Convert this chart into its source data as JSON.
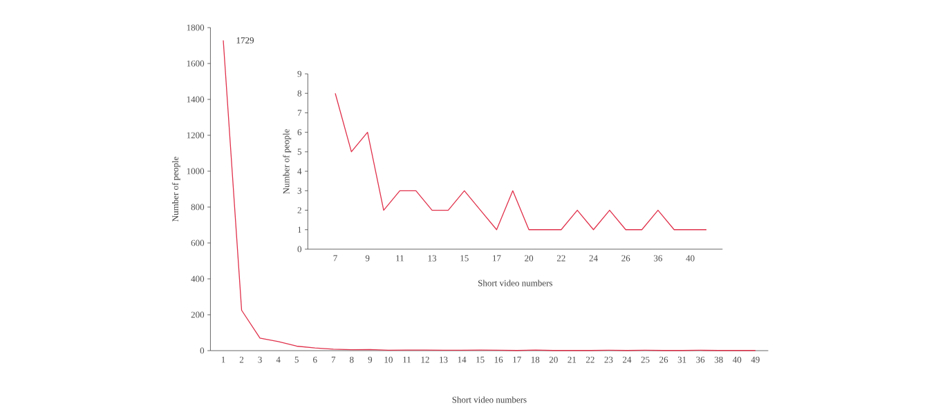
{
  "chart_data": [
    {
      "type": "line",
      "xlabel": "Short video numbers",
      "ylabel": "Number of people",
      "categories": [
        "1",
        "2",
        "3",
        "4",
        "5",
        "6",
        "7",
        "8",
        "9",
        "10",
        "11",
        "12",
        "13",
        "14",
        "15",
        "16",
        "17",
        "18",
        "20",
        "21",
        "22",
        "23",
        "24",
        "25",
        "26",
        "31",
        "36",
        "38",
        "40",
        "49"
      ],
      "series": [
        {
          "color": "#e0304a",
          "values": [
            1729,
            225,
            70,
            50,
            25,
            15,
            8,
            5,
            6,
            2,
            3,
            3,
            2,
            2,
            3,
            2,
            1,
            3,
            1,
            1,
            1,
            2,
            1,
            2,
            1,
            1,
            2,
            1,
            1,
            1
          ]
        }
      ],
      "ylim": [
        0,
        1800
      ],
      "yticks": [
        0,
        200,
        400,
        600,
        800,
        1000,
        1200,
        1400,
        1600,
        1800
      ],
      "annotations": [
        {
          "text": "1729",
          "x": "1",
          "y": 1729
        }
      ]
    },
    {
      "type": "line",
      "xlabel": "Short video numbers",
      "ylabel": "Number of people",
      "categories": [
        "7",
        null,
        "9",
        null,
        "11",
        null,
        "13",
        null,
        "15",
        null,
        "17",
        null,
        "20",
        null,
        "22",
        null,
        "24",
        null,
        "26",
        null,
        "36",
        null,
        "40",
        null
      ],
      "series": [
        {
          "color": "#e0304a",
          "values": [
            8,
            5,
            6,
            2,
            3,
            3,
            2,
            2,
            3,
            2,
            1,
            3,
            1,
            1,
            1,
            2,
            1,
            2,
            1,
            1,
            2,
            1,
            1,
            1
          ]
        }
      ],
      "ylim": [
        0,
        9
      ],
      "yticks": [
        0,
        1,
        2,
        3,
        4,
        5,
        6,
        7,
        8,
        9
      ]
    }
  ]
}
